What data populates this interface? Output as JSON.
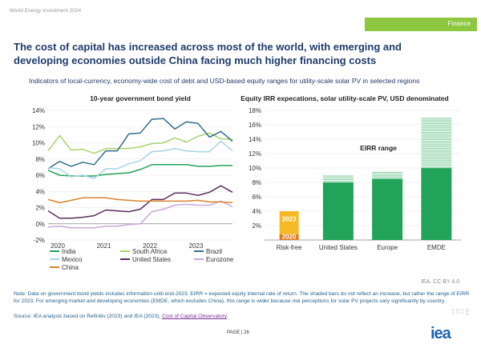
{
  "header": {
    "report": "World Energy Investment 2024",
    "section": "Finance"
  },
  "title": "The cost of capital has increased across most of the world, with emerging and developing economies outside China facing much higher financing costs",
  "subtitle": "Indicators of local-currency, economy-wide cost of debt and USD-based equity ranges for utility-scale solar PV in selected regions",
  "colors": {
    "India": "#21a35a",
    "South Africa": "#a8d46a",
    "Brazil": "#2f6e8a",
    "Mexico": "#a8d2e8",
    "United States": "#5a2d5e",
    "Eurozone": "#c9a7d9",
    "China": "#d9822b",
    "riskfree2023": "#f7b825",
    "riskfree2020": "#e07b1a",
    "eirr": "#21a35a",
    "eirr_shaded": "#8fd3a8"
  },
  "chart_data": [
    {
      "type": "line",
      "title": "10-year government bond yield",
      "x": [
        2020,
        2020.25,
        2020.5,
        2020.75,
        2021,
        2021.25,
        2021.5,
        2021.75,
        2022,
        2022.25,
        2022.5,
        2022.75,
        2023,
        2023.25,
        2023.5,
        2023.75,
        2024
      ],
      "x_ticks": [
        "2020",
        "2021",
        "2022",
        "2023"
      ],
      "y_ticks": [
        "-2%",
        "0%",
        "2%",
        "4%",
        "6%",
        "8%",
        "10%",
        "12%",
        "14%"
      ],
      "ylim": [
        -2,
        14
      ],
      "grid": true,
      "legend_position": "bottom",
      "series": [
        {
          "name": "India",
          "values": [
            6.6,
            6.0,
            5.9,
            5.9,
            5.9,
            6.1,
            6.2,
            6.3,
            6.7,
            7.3,
            7.3,
            7.3,
            7.3,
            7.1,
            7.1,
            7.2,
            7.2
          ]
        },
        {
          "name": "South Africa",
          "values": [
            9.0,
            10.9,
            9.1,
            9.2,
            8.7,
            9.3,
            9.3,
            9.3,
            9.5,
            9.9,
            10.0,
            10.6,
            10.1,
            10.8,
            11.2,
            10.5,
            10.4
          ]
        },
        {
          "name": "Brazil",
          "values": [
            6.8,
            7.7,
            7.1,
            7.6,
            7.3,
            9.0,
            9.0,
            11.1,
            11.2,
            12.9,
            13.0,
            11.7,
            12.6,
            12.4,
            10.7,
            11.4,
            10.2
          ]
        },
        {
          "name": "Mexico",
          "values": [
            6.9,
            6.8,
            5.8,
            6.0,
            5.6,
            6.8,
            6.8,
            7.4,
            7.8,
            8.9,
            9.0,
            9.3,
            9.0,
            8.9,
            8.9,
            10.2,
            9.0
          ]
        },
        {
          "name": "United States",
          "values": [
            1.6,
            0.7,
            0.7,
            0.8,
            1.0,
            1.7,
            1.6,
            1.5,
            1.8,
            3.0,
            3.0,
            3.8,
            3.8,
            3.5,
            3.9,
            4.7,
            3.9
          ]
        },
        {
          "name": "Eurozone",
          "values": [
            -0.4,
            -0.3,
            -0.5,
            -0.5,
            -0.5,
            -0.3,
            -0.3,
            -0.1,
            0.0,
            1.5,
            1.8,
            2.3,
            2.4,
            2.3,
            2.3,
            2.8,
            2.1
          ]
        },
        {
          "name": "China",
          "values": [
            3.0,
            2.6,
            2.9,
            3.2,
            3.2,
            3.2,
            3.0,
            2.9,
            2.8,
            2.8,
            2.8,
            2.8,
            2.8,
            2.9,
            2.7,
            2.7,
            2.6
          ]
        }
      ]
    },
    {
      "type": "bar",
      "title": "Equity IRR expecations, solar utility-scale PV, USD denominated",
      "categories": [
        "Risk-free",
        "United States",
        "Europe",
        "EMDE"
      ],
      "y_ticks": [
        "2%",
        "4%",
        "6%",
        "8%",
        "10%",
        "12%",
        "14%",
        "16%",
        "18%"
      ],
      "ylim": [
        0,
        18
      ],
      "annotation": "EIRR range",
      "riskfree": {
        "y2020": 0.8,
        "y2023": 4.0,
        "label_2020": "2020",
        "label_2023": "2023"
      },
      "eirr": [
        {
          "category": "United States",
          "low": 0,
          "high": 8.0,
          "shaded_high": 9.0
        },
        {
          "category": "Europe",
          "low": 0,
          "high": 8.5,
          "shaded_high": 9.5
        },
        {
          "category": "EMDE",
          "low": 0,
          "high": 10.0,
          "shaded_high": 17.0
        }
      ]
    }
  ],
  "credit": "IEA. CC BY 4.0",
  "note": "Note: Data on government bond yields includes information until end-2023. EIRR = expected equity internal rate of return. The shaded bars do not reflect an increase, but rather the range of EIRR for 2023. For emerging market and developing economies (EMDE, which excludes China), this range is wider because risk perceptions for solar PV projects vary significantly by country.",
  "source_prefix": "Source: IEA analysis based on Refinitiv (2023) and IEA (2023), ",
  "source_link": "Cost of Capital Observatory",
  "source_suffix": ".",
  "page": "PAGE | 26",
  "logo": "iea",
  "side_credit": "IEA. CC BY 4.0."
}
